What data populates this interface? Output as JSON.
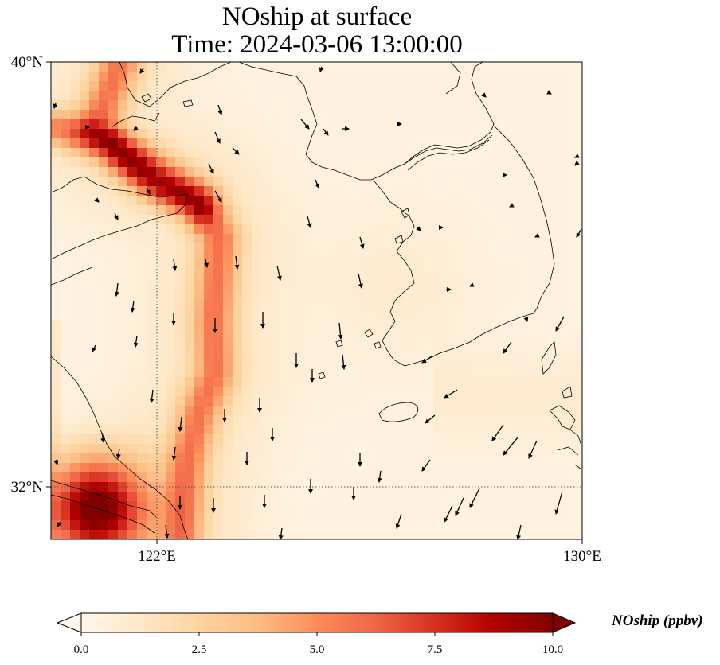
{
  "title": {
    "line1": "NOship at surface",
    "line2": "Time: 2024-03-06 13:00:00"
  },
  "axes": {
    "lon_ticks": [
      "122°E",
      "130°E"
    ],
    "lat_ticks": [
      "40°N",
      "32°N"
    ],
    "gridlines": "dotted"
  },
  "colorbar": {
    "label": "NOship (ppbv)",
    "ticks": [
      "0.0",
      "2.5",
      "5.0",
      "7.5",
      "10.0"
    ],
    "min": 0,
    "max": 10,
    "extend": "both",
    "colormap": "OrRd",
    "colors": [
      "#fff7ec",
      "#fee8c8",
      "#fdd49e",
      "#fdbb84",
      "#fc8d59",
      "#ef6548",
      "#d7301f",
      "#b30000",
      "#7f0000"
    ]
  },
  "map": {
    "region": "Yellow Sea, Bohai Sea and Korean Peninsula",
    "extent": {
      "lon_min": 120,
      "lon_max": 130,
      "lat_min": 31,
      "lat_max": 40
    },
    "features": [
      "coastlines",
      "wind-vectors",
      "shipping-lane-plume"
    ]
  }
}
